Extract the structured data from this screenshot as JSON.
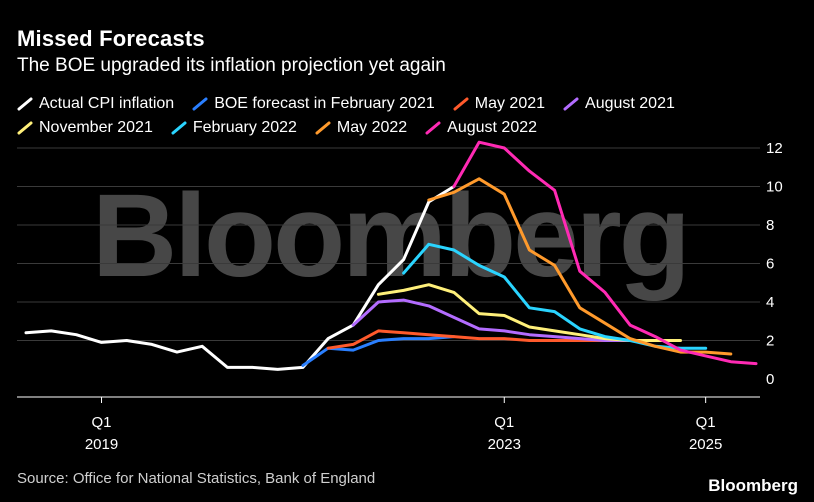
{
  "header": {
    "title": "Missed Forecasts",
    "subtitle": "The BOE upgraded its inflation projection yet again"
  },
  "footer": {
    "source": "Source: Office for National Statistics, Bank of England",
    "brand": "Bloomberg"
  },
  "watermark": "Bloomberg",
  "chart_data": {
    "type": "line",
    "title": "Missed Forecasts",
    "subtitle": "The BOE upgraded its inflation projection yet again",
    "x_axis": {
      "type": "quarterly",
      "range": [
        "2018 Q2",
        "2025 Q3"
      ],
      "ticks": [
        {
          "line1": "Q1",
          "line2": "2019",
          "x": "2019 Q1"
        },
        {
          "line1": "Q1",
          "line2": "2023",
          "x": "2023 Q1"
        },
        {
          "line1": "Q1",
          "line2": "2025",
          "x": "2025 Q1"
        }
      ]
    },
    "y_axis": {
      "range": [
        -1,
        13
      ],
      "ticks": [
        0,
        2,
        4,
        6,
        8,
        10,
        12
      ],
      "position": "right"
    },
    "grid": "horizontal",
    "legend_placement": "top",
    "series": [
      {
        "name": "Actual CPI inflation",
        "color": "#ffffff",
        "points": [
          [
            "2018 Q2",
            2.4
          ],
          [
            "2018 Q3",
            2.5
          ],
          [
            "2018 Q4",
            2.3
          ],
          [
            "2019 Q1",
            1.9
          ],
          [
            "2019 Q2",
            2.0
          ],
          [
            "2019 Q3",
            1.8
          ],
          [
            "2019 Q4",
            1.4
          ],
          [
            "2020 Q1",
            1.7
          ],
          [
            "2020 Q2",
            0.6
          ],
          [
            "2020 Q3",
            0.6
          ],
          [
            "2020 Q4",
            0.5
          ],
          [
            "2021 Q1",
            0.6
          ],
          [
            "2021 Q2",
            2.1
          ],
          [
            "2021 Q3",
            2.8
          ],
          [
            "2021 Q4",
            4.9
          ],
          [
            "2022 Q1",
            6.2
          ],
          [
            "2022 Q2",
            9.2
          ],
          [
            "2022 Q3",
            10.0
          ]
        ]
      },
      {
        "name": "BOE forecast in February 2021",
        "color": "#2a7fff",
        "points": [
          [
            "2021 Q1",
            0.7
          ],
          [
            "2021 Q2",
            1.6
          ],
          [
            "2021 Q3",
            1.5
          ],
          [
            "2021 Q4",
            2.0
          ],
          [
            "2022 Q1",
            2.1
          ],
          [
            "2022 Q2",
            2.1
          ],
          [
            "2022 Q3",
            2.2
          ]
        ]
      },
      {
        "name": "May 2021",
        "color": "#ff5a2c",
        "points": [
          [
            "2021 Q2",
            1.6
          ],
          [
            "2021 Q3",
            1.8
          ],
          [
            "2021 Q4",
            2.5
          ],
          [
            "2022 Q1",
            2.4
          ],
          [
            "2022 Q2",
            2.3
          ],
          [
            "2022 Q3",
            2.2
          ],
          [
            "2022 Q4",
            2.1
          ],
          [
            "2023 Q1",
            2.1
          ],
          [
            "2023 Q2",
            2.0
          ],
          [
            "2023 Q3",
            2.0
          ],
          [
            "2023 Q4",
            2.0
          ],
          [
            "2024 Q1",
            2.0
          ],
          [
            "2024 Q2",
            2.0
          ]
        ]
      },
      {
        "name": "August 2021",
        "color": "#b36cff",
        "points": [
          [
            "2021 Q3",
            2.8
          ],
          [
            "2021 Q4",
            4.0
          ],
          [
            "2022 Q1",
            4.1
          ],
          [
            "2022 Q2",
            3.8
          ],
          [
            "2022 Q3",
            3.2
          ],
          [
            "2022 Q4",
            2.6
          ],
          [
            "2023 Q1",
            2.5
          ],
          [
            "2023 Q2",
            2.3
          ],
          [
            "2023 Q3",
            2.2
          ],
          [
            "2023 Q4",
            2.1
          ],
          [
            "2024 Q1",
            2.0
          ],
          [
            "2024 Q2",
            2.0
          ],
          [
            "2024 Q3",
            2.0
          ]
        ]
      },
      {
        "name": "November 2021",
        "color": "#fff07a",
        "points": [
          [
            "2021 Q4",
            4.4
          ],
          [
            "2022 Q1",
            4.6
          ],
          [
            "2022 Q2",
            4.9
          ],
          [
            "2022 Q3",
            4.5
          ],
          [
            "2022 Q4",
            3.4
          ],
          [
            "2023 Q1",
            3.3
          ],
          [
            "2023 Q2",
            2.7
          ],
          [
            "2023 Q3",
            2.5
          ],
          [
            "2023 Q4",
            2.3
          ],
          [
            "2024 Q1",
            2.1
          ],
          [
            "2024 Q2",
            2.0
          ],
          [
            "2024 Q3",
            2.0
          ],
          [
            "2024 Q4",
            2.0
          ]
        ]
      },
      {
        "name": "February 2022",
        "color": "#2ad4ff",
        "points": [
          [
            "2022 Q1",
            5.5
          ],
          [
            "2022 Q2",
            7.0
          ],
          [
            "2022 Q3",
            6.7
          ],
          [
            "2022 Q4",
            5.9
          ],
          [
            "2023 Q1",
            5.3
          ],
          [
            "2023 Q2",
            3.7
          ],
          [
            "2023 Q3",
            3.5
          ],
          [
            "2023 Q4",
            2.6
          ],
          [
            "2024 Q1",
            2.2
          ],
          [
            "2024 Q2",
            2.0
          ],
          [
            "2024 Q3",
            1.7
          ],
          [
            "2024 Q4",
            1.6
          ],
          [
            "2025 Q1",
            1.6
          ]
        ]
      },
      {
        "name": "May 2022",
        "color": "#ff9a2c",
        "points": [
          [
            "2022 Q2",
            9.3
          ],
          [
            "2022 Q3",
            9.7
          ],
          [
            "2022 Q4",
            10.4
          ],
          [
            "2023 Q1",
            9.6
          ],
          [
            "2023 Q2",
            6.7
          ],
          [
            "2023 Q3",
            5.9
          ],
          [
            "2023 Q4",
            3.7
          ],
          [
            "2024 Q1",
            2.9
          ],
          [
            "2024 Q2",
            2.1
          ],
          [
            "2024 Q3",
            1.7
          ],
          [
            "2024 Q4",
            1.4
          ],
          [
            "2025 Q1",
            1.4
          ],
          [
            "2025 Q2",
            1.3
          ]
        ]
      },
      {
        "name": "August 2022",
        "color": "#ff2ab4",
        "points": [
          [
            "2022 Q3",
            10.0
          ],
          [
            "2022 Q4",
            12.3
          ],
          [
            "2023 Q1",
            12.0
          ],
          [
            "2023 Q2",
            10.8
          ],
          [
            "2023 Q3",
            9.8
          ],
          [
            "2023 Q4",
            5.6
          ],
          [
            "2024 Q1",
            4.5
          ],
          [
            "2024 Q2",
            2.8
          ],
          [
            "2024 Q3",
            2.2
          ],
          [
            "2024 Q4",
            1.5
          ],
          [
            "2025 Q1",
            1.2
          ],
          [
            "2025 Q2",
            0.9
          ],
          [
            "2025 Q3",
            0.8
          ]
        ]
      }
    ]
  }
}
